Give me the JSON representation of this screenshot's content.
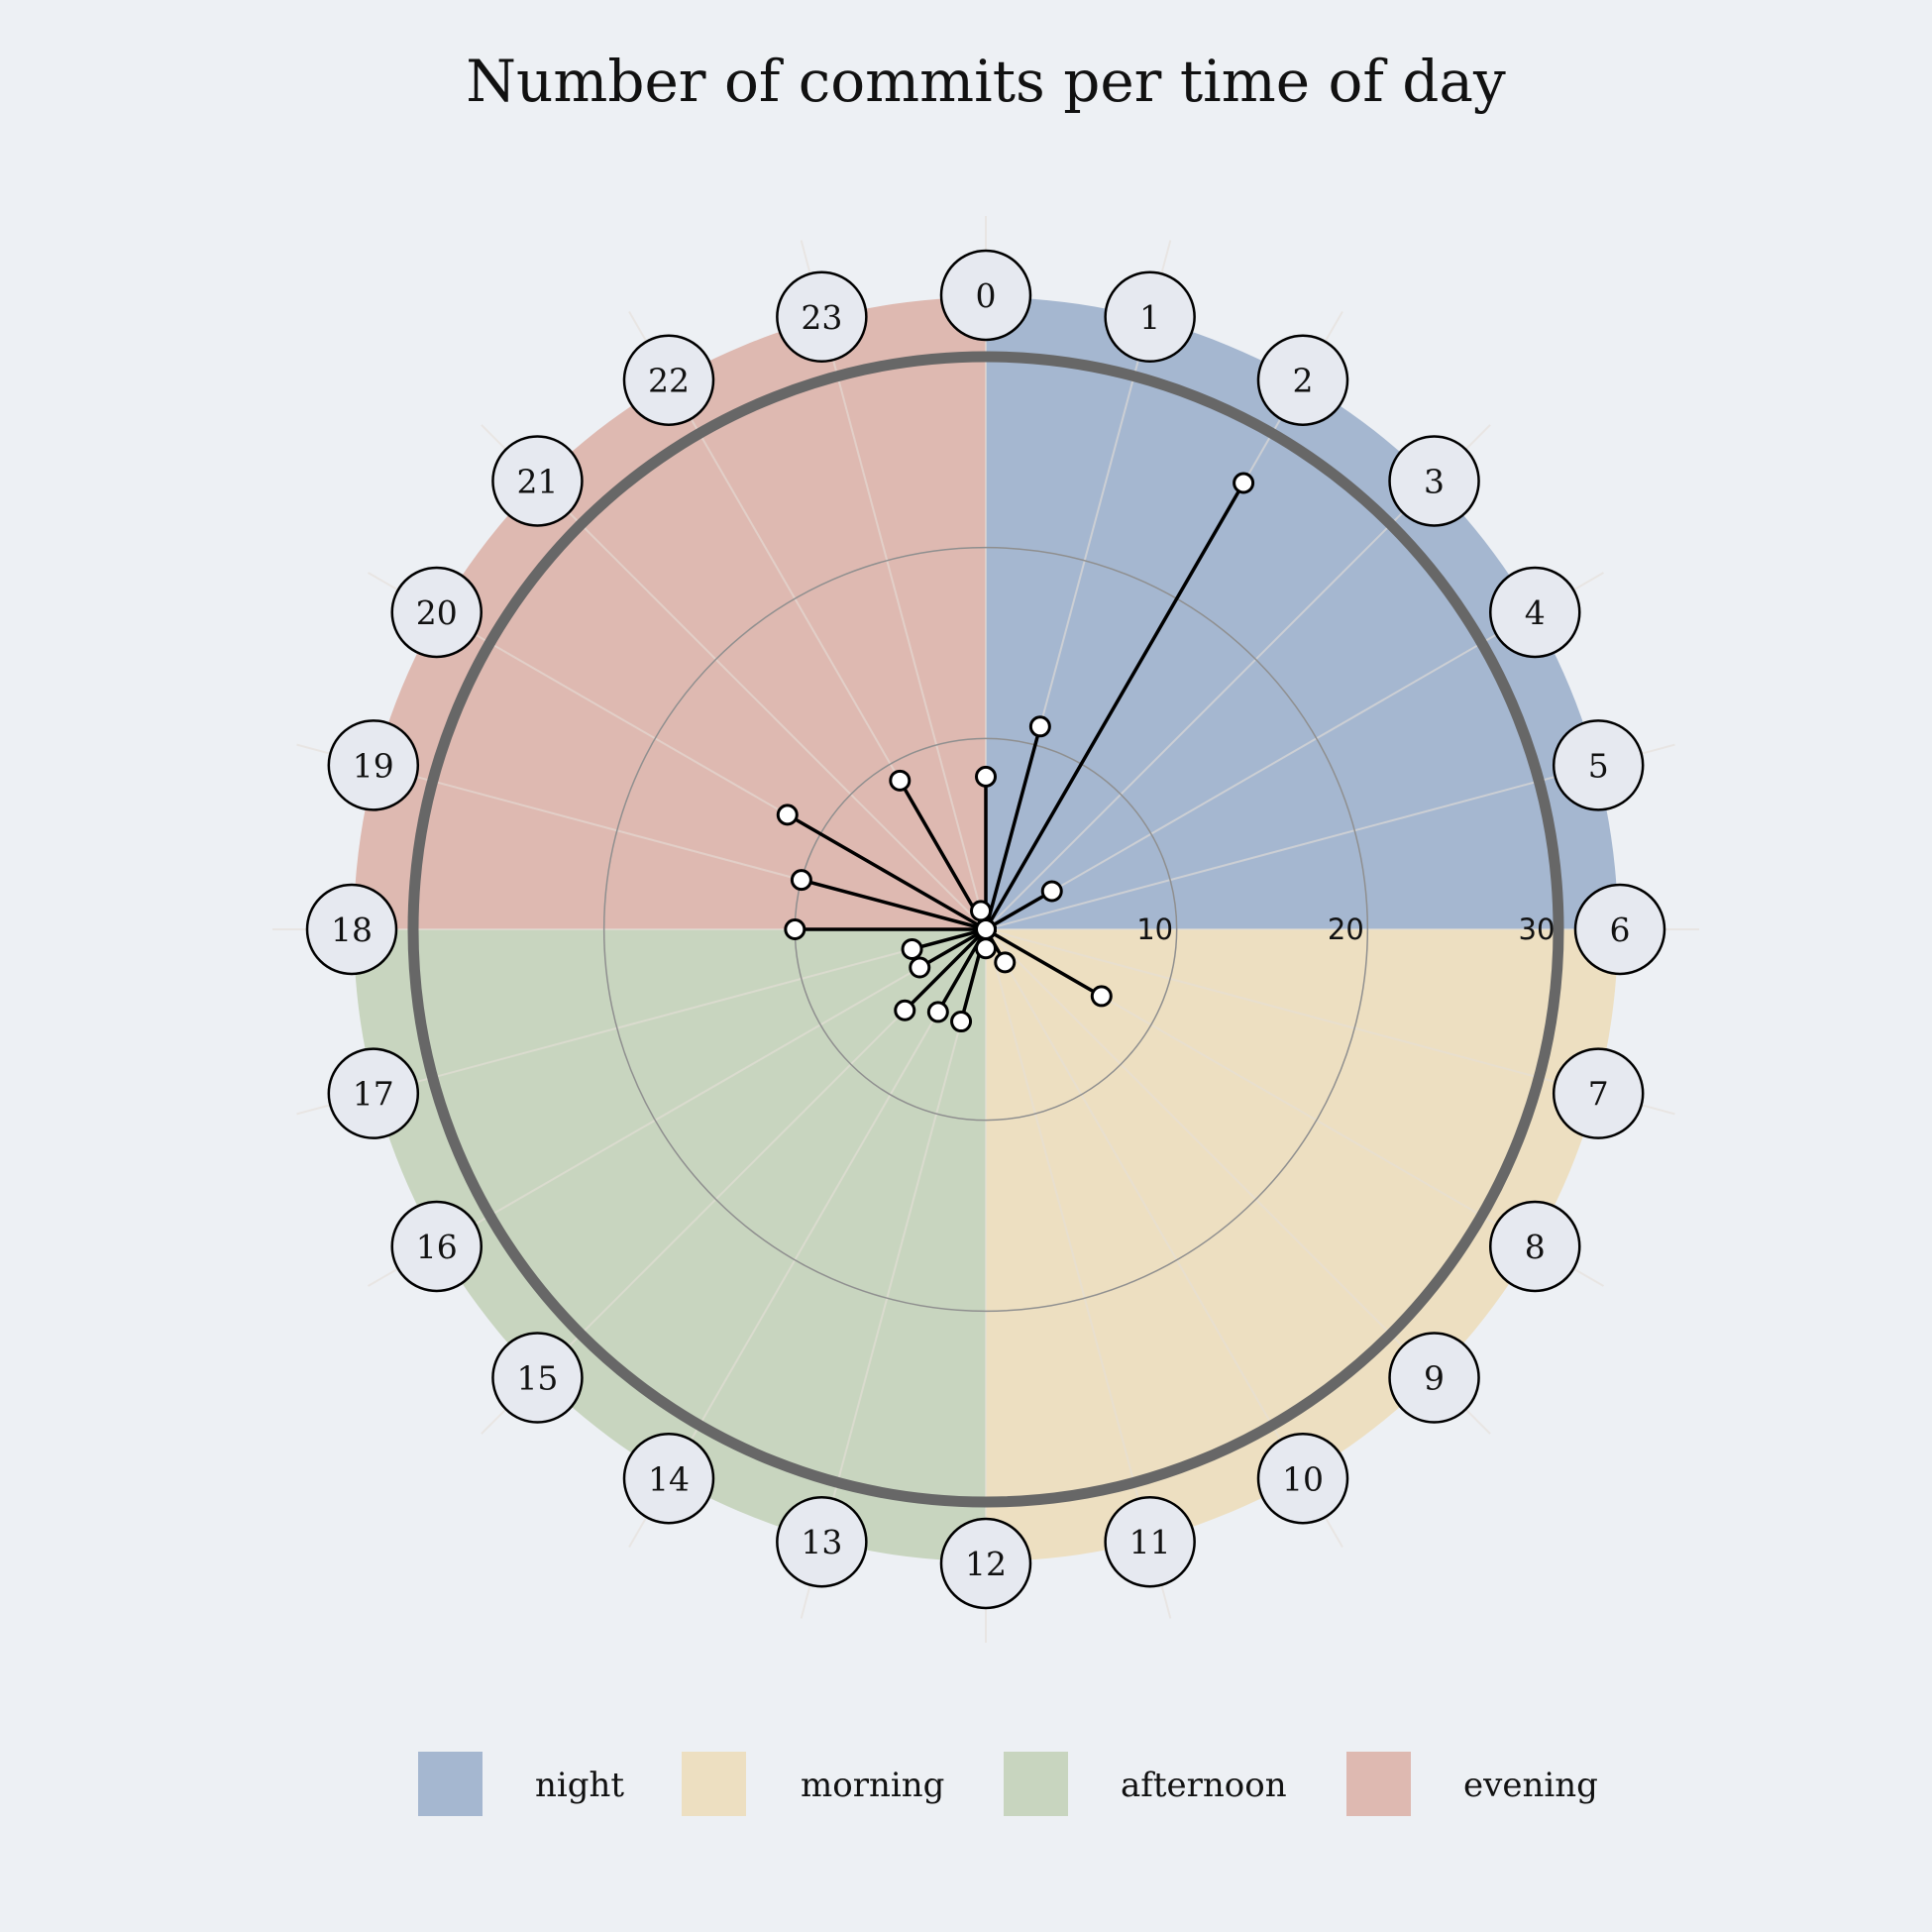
{
  "chart_data": {
    "type": "polar-lollipop",
    "title": "Number of commits per time of day",
    "categories": [
      "0",
      "1",
      "2",
      "3",
      "4",
      "5",
      "6",
      "7",
      "8",
      "9",
      "10",
      "11",
      "12",
      "13",
      "14",
      "15",
      "16",
      "17",
      "18",
      "19",
      "20",
      "21",
      "22",
      "23"
    ],
    "values": [
      8,
      11,
      27,
      0,
      4,
      0,
      0,
      0,
      7,
      0,
      2,
      0,
      1,
      5,
      5,
      6,
      4,
      4,
      10,
      10,
      12,
      0,
      9,
      1
    ],
    "radial_ticks": [
      "10",
      "20",
      "30"
    ],
    "rlim": [
      0,
      30
    ],
    "legend": [
      {
        "name": "night",
        "color": "#a5b7d0"
      },
      {
        "name": "morning",
        "color": "#eddfc1"
      },
      {
        "name": "afternoon",
        "color": "#c8d5bf"
      },
      {
        "name": "evening",
        "color": "#deb9b1"
      }
    ],
    "legend_position": "bottom",
    "grid": true
  }
}
